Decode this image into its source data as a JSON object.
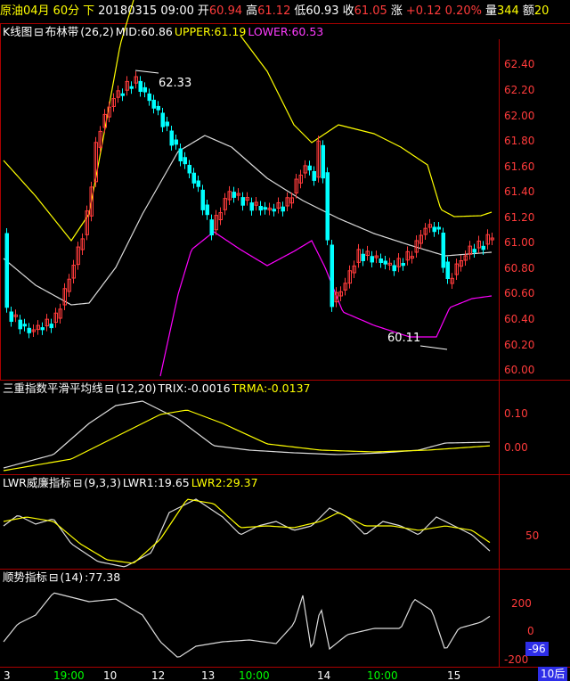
{
  "header": {
    "symbol": "原油04月",
    "period": "60分",
    "direction": "下",
    "datetime": "20180315 09:00",
    "open_label": "开",
    "open": "60.94",
    "high_label": "高",
    "high": "61.12",
    "low_label": "低",
    "low": "60.93",
    "close_label": "收",
    "close": "61.05",
    "change_label": "涨",
    "change": "+0.12",
    "change_pct": "0.20%",
    "volume_label": "量",
    "volume": "344",
    "amount_label": "额",
    "amount": "20"
  },
  "main_panel": {
    "title": "K线图",
    "indicator": "布林带",
    "params": "(26,2)",
    "mid": "MID:60.86",
    "upper": "UPPER:61.19",
    "lower": "LOWER:60.53",
    "high_note": "62.33",
    "low_note": "60.11",
    "axis_labels": [
      "62.40",
      "62.20",
      "62.00",
      "61.80",
      "61.60",
      "61.40",
      "61.20",
      "61.00",
      "60.80",
      "60.60",
      "60.40",
      "60.20",
      "60.00"
    ]
  },
  "trix_panel": {
    "title": "三重指数平滑平均线",
    "params": "(12,20)",
    "trix": "TRIX:-0.0016",
    "trma": "TRMA:-0.0137",
    "axis_labels": [
      "0.10",
      "0.00"
    ]
  },
  "lwr_panel": {
    "title": "LWR威廉指标",
    "params": "(9,3,3)",
    "lwr1": "LWR1:19.65",
    "lwr2": "LWR2:29.37",
    "axis_labels": [
      "50"
    ]
  },
  "cci_panel": {
    "title": "顺势指标",
    "params": "(14)",
    "value": ":77.38",
    "axis_labels": [
      "200",
      "0",
      "-200"
    ],
    "current_tag": "-96"
  },
  "time_axis": {
    "labels": [
      "3",
      "19:00",
      "10",
      "12",
      "13",
      "10:00",
      "14",
      "10:00",
      "15"
    ],
    "corner_tag": "10后"
  },
  "colors": {
    "background": "#000000",
    "up": "#ff3b3b",
    "down": "#00ffff",
    "upper_band": "#ffff00",
    "mid_band": "#dcdcdc",
    "lower_band": "#ff00ff",
    "frame": "#aa0000"
  }
}
